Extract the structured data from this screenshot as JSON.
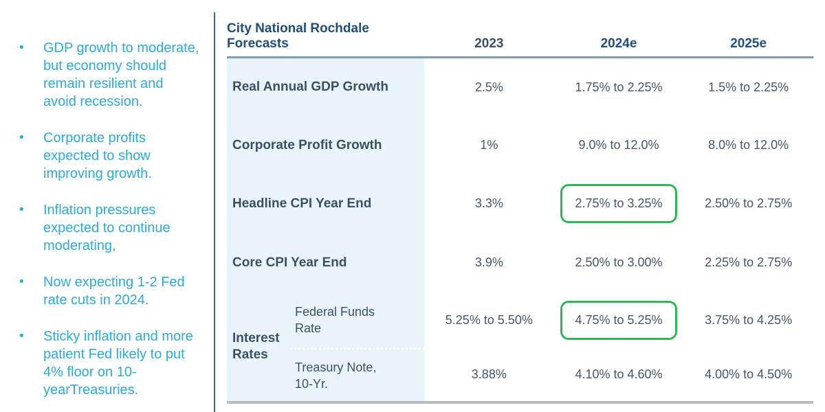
{
  "colors": {
    "bullet_blue": "#29abe2",
    "title_navy": "#1e4e79",
    "table_text_slate": "#44566b",
    "row_label_color": "#3c5064",
    "row_bg_light_blue": "#e9f3fb",
    "highlight_green": "#2db757",
    "header_rule_blue": "#7b9cbb",
    "bottom_rule_gray": "#b6bcc1",
    "divider_navy": "#3c6391"
  },
  "key_points": {
    "bullet_glyph": "•",
    "items": [
      "GDP growth to moderate, but economy should remain resilient and avoid recession.",
      "Corporate profits expected to show improving growth.",
      "Inflation pressures expected to continue moderating,",
      "Now expecting 1-2 Fed rate cuts in 2024.",
      "Sticky inflation and more patient Fed likely to put 4% floor on 10-yearTreasuries."
    ]
  },
  "table": {
    "title": "City National Rochdale Forecasts",
    "columns": [
      "2023",
      "2024e",
      "2025e"
    ],
    "rows": [
      {
        "label": "Real Annual GDP Growth",
        "values": [
          "2.5%",
          "1.75% to 2.25%",
          "1.5% to 2.25%"
        ]
      },
      {
        "label": "Corporate Profit Growth",
        "values": [
          "1%",
          "9.0% to 12.0%",
          "8.0% to 12.0%"
        ]
      },
      {
        "label": "Headline CPI Year End",
        "values": [
          "3.3%",
          "2.75% to 3.25%",
          "2.50% to 2.75%"
        ],
        "highlighted_column": "2024e"
      },
      {
        "label": "Core CPI Year End",
        "values": [
          "3.9%",
          "2.50% to 3.00%",
          "2.25% to 2.75%"
        ]
      }
    ],
    "group": {
      "label": "Interest Rates",
      "rows": [
        {
          "label": "Federal Funds Rate",
          "values": [
            "5.25% to 5.50%",
            "4.75% to 5.25%",
            "3.75% to 4.25%"
          ],
          "highlighted_column": "2024e"
        },
        {
          "label": "Treasury Note, 10-Yr.",
          "values": [
            "3.88%",
            "4.10% to 4.60%",
            "4.00% to 4.50%"
          ]
        }
      ]
    }
  }
}
